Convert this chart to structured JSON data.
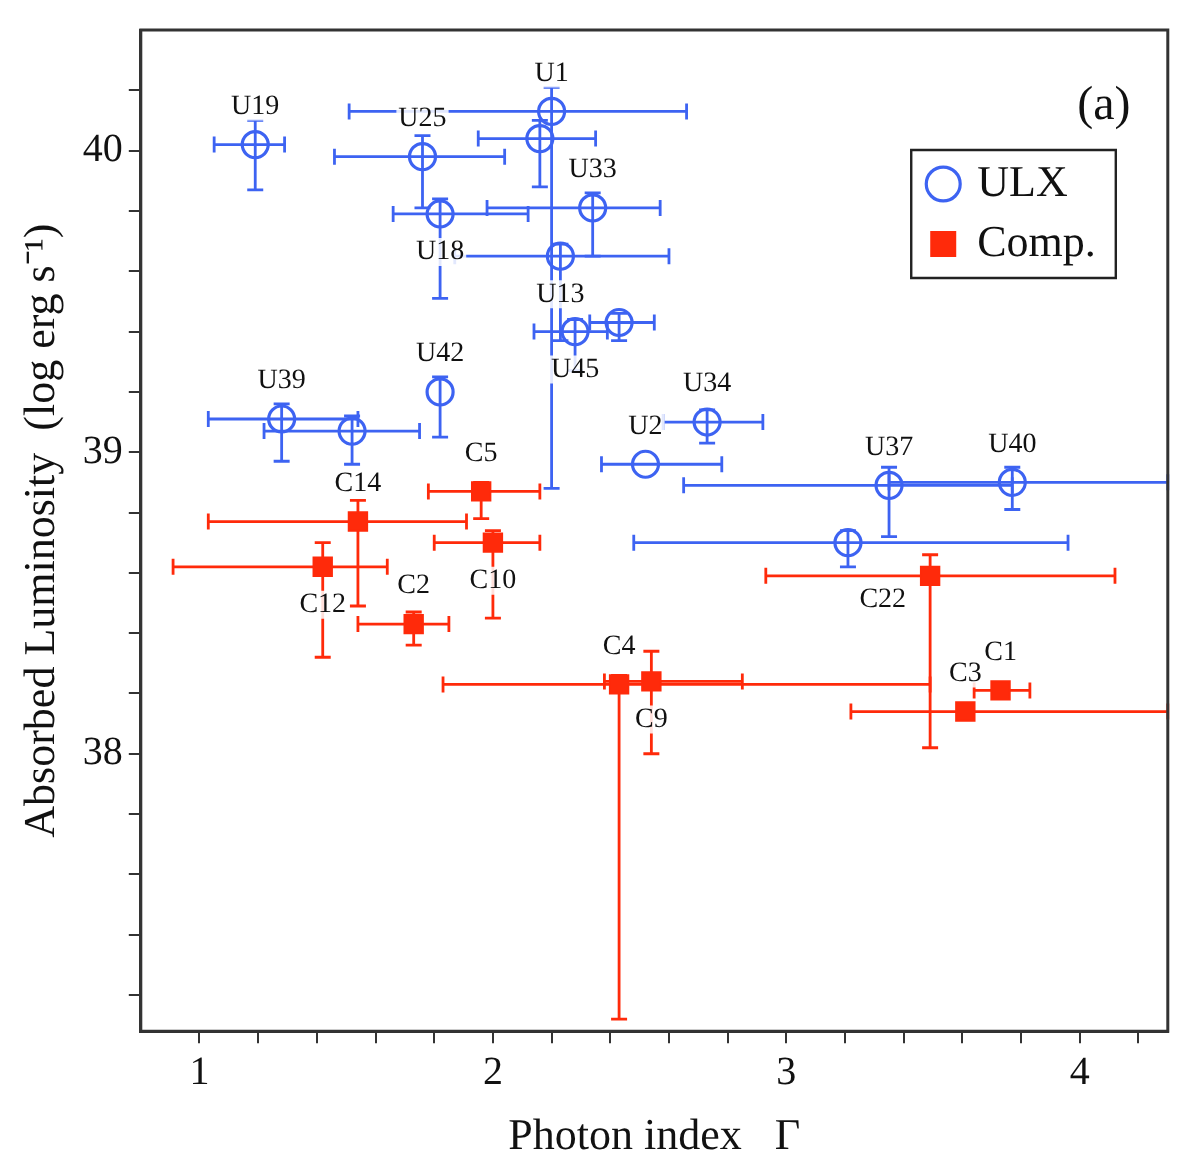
{
  "chart_data": {
    "type": "scatter",
    "xlabel": "Photon index   Γ",
    "ylabel": "Absorbed Luminosity  (log erg s⁻¹)",
    "xlim": [
      0.8,
      4.3
    ],
    "ylim": [
      37.08,
      40.4
    ],
    "xticks": [
      1,
      {
        "value": 1.2,
        "label": null
      },
      {
        "value": 1.4,
        "label": null
      },
      {
        "value": 1.6,
        "label": null
      },
      {
        "value": 1.8,
        "label": null
      },
      2,
      {
        "value": 2.2,
        "label": null
      },
      {
        "value": 2.4,
        "label": null
      },
      {
        "value": 2.6,
        "label": null
      },
      {
        "value": 2.8,
        "label": null
      },
      3,
      {
        "value": 3.2,
        "label": null
      },
      {
        "value": 3.4,
        "label": null
      },
      {
        "value": 3.6,
        "label": null
      },
      {
        "value": 3.8,
        "label": null
      },
      4,
      {
        "value": 4.2,
        "label": null
      }
    ],
    "yticks": [
      {
        "value": 37.2,
        "label": null
      },
      {
        "value": 37.4,
        "label": null
      },
      {
        "value": 37.6,
        "label": null
      },
      {
        "value": 37.8,
        "label": null
      },
      38,
      {
        "value": 38.2,
        "label": null
      },
      {
        "value": 38.4,
        "label": null
      },
      {
        "value": 38.6,
        "label": null
      },
      {
        "value": 38.8,
        "label": null
      },
      39,
      {
        "value": 39.2,
        "label": null
      },
      {
        "value": 39.4,
        "label": null
      },
      {
        "value": 39.6,
        "label": null
      },
      {
        "value": 39.8,
        "label": null
      },
      40,
      {
        "value": 40.2,
        "label": null
      }
    ],
    "grid": false,
    "legend": "top right",
    "series": [
      {
        "name": "ULX",
        "color": "#3d63f2",
        "marker": "circle",
        "x": [
          1.19,
          2.2,
          2.16,
          1.76,
          1.82,
          2.34,
          2.23,
          2.28,
          2.43,
          1.82,
          1.28,
          1.52,
          2.73,
          2.52,
          3.35,
          3.77,
          3.21
        ],
        "values": [
          40.02,
          40.13,
          40.04,
          39.98,
          39.79,
          39.81,
          39.65,
          39.4,
          39.43,
          39.2,
          39.11,
          39.07,
          39.1,
          38.96,
          38.89,
          38.9,
          38.7
        ],
        "errors": [
          [
            39.87,
            40.1
          ],
          [
            38.88,
            40.21
          ],
          [
            39.88,
            40.1
          ],
          [
            39.81,
            40.05
          ],
          [
            39.51,
            39.84
          ],
          [
            39.65,
            39.86
          ],
          [
            39.37,
            39.69
          ],
          [
            39.27,
            39.44
          ],
          [
            39.37,
            39.46
          ],
          [
            39.05,
            39.25
          ],
          [
            38.97,
            39.16
          ],
          [
            38.96,
            39.12
          ],
          [
            39.03,
            39.14
          ],
          null,
          [
            38.72,
            38.95
          ],
          [
            38.81,
            38.95
          ],
          [
            38.62,
            38.74
          ]
        ],
        "xerrors": [
          [
            1.05,
            1.29
          ],
          [
            1.51,
            2.66
          ],
          [
            1.95,
            2.35
          ],
          [
            1.46,
            2.04
          ],
          [
            1.66,
            2.12
          ],
          [
            1.98,
            2.57
          ],
          [
            1.87,
            2.6
          ],
          [
            2.14,
            2.39
          ],
          [
            2.33,
            2.55
          ],
          null,
          [
            1.03,
            1.54
          ],
          [
            1.22,
            1.75
          ],
          [
            2.58,
            2.92
          ],
          [
            2.37,
            2.78
          ],
          [
            2.65,
            3.77
          ],
          [
            3.35,
            4.3
          ],
          [
            2.48,
            3.96
          ]
        ]
      },
      {
        "name": "Comp.",
        "color": "#ff2a0a",
        "marker": "square",
        "x": [
          1.96,
          1.54,
          2.0,
          1.42,
          1.73,
          2.43,
          2.54,
          3.49,
          3.73,
          3.61
        ],
        "values": [
          38.87,
          38.77,
          38.7,
          38.62,
          38.43,
          38.23,
          38.24,
          38.59,
          38.21,
          38.14
        ],
        "errors": [
          [
            38.78,
            38.9
          ],
          [
            38.49,
            38.84
          ],
          [
            38.45,
            38.74
          ],
          [
            38.32,
            38.7
          ],
          [
            38.36,
            38.47
          ],
          [
            37.12,
            38.26
          ],
          [
            38.0,
            38.34
          ],
          [
            38.02,
            38.66
          ],
          null,
          null
        ],
        "xerrors": [
          [
            1.78,
            2.16
          ],
          [
            1.03,
            1.91
          ],
          [
            1.8,
            2.16
          ],
          [
            0.91,
            1.64
          ],
          [
            1.54,
            1.85
          ],
          [
            1.83,
            3.49
          ],
          [
            2.38,
            2.85
          ],
          [
            2.93,
            4.12
          ],
          [
            3.64,
            3.83
          ],
          [
            3.22,
            4.3
          ]
        ]
      }
    ],
    "annotations": [
      "(a)",
      {
        "text": "U19",
        "x": 1.19,
        "y": 40.02
      },
      {
        "text": "U25",
        "x": 1.76,
        "y": 39.98
      },
      {
        "text": "U1",
        "x": 2.2,
        "y": 40.13
      },
      {
        "text": "U33",
        "x": 2.34,
        "y": 39.81
      },
      {
        "text": "U18",
        "x": 1.82,
        "y": 39.79
      },
      {
        "text": "U13",
        "x": 2.23,
        "y": 39.65
      },
      {
        "text": "U39",
        "x": 1.28,
        "y": 39.11
      },
      {
        "text": "U42",
        "x": 1.82,
        "y": 39.2
      },
      {
        "text": "U45",
        "x": 2.28,
        "y": 39.4
      },
      {
        "text": "U34",
        "x": 2.73,
        "y": 39.1
      },
      {
        "text": "U2",
        "x": 2.52,
        "y": 38.96
      },
      {
        "text": "U37",
        "x": 3.35,
        "y": 38.89
      },
      {
        "text": "U40",
        "x": 3.77,
        "y": 38.9
      },
      {
        "text": "C5",
        "x": 1.96,
        "y": 38.87
      },
      {
        "text": "C14",
        "x": 1.54,
        "y": 38.77
      },
      {
        "text": "C10",
        "x": 2.0,
        "y": 38.7
      },
      {
        "text": "C12",
        "x": 1.42,
        "y": 38.62
      },
      {
        "text": "C2",
        "x": 1.73,
        "y": 38.43
      },
      {
        "text": "C4",
        "x": 2.43,
        "y": 38.23
      },
      {
        "text": "C9",
        "x": 2.54,
        "y": 38.24
      },
      {
        "text": "C22",
        "x": 3.49,
        "y": 38.59
      },
      {
        "text": "C1",
        "x": 3.73,
        "y": 38.21
      },
      {
        "text": "C3",
        "x": 3.61,
        "y": 38.14
      }
    ]
  }
}
